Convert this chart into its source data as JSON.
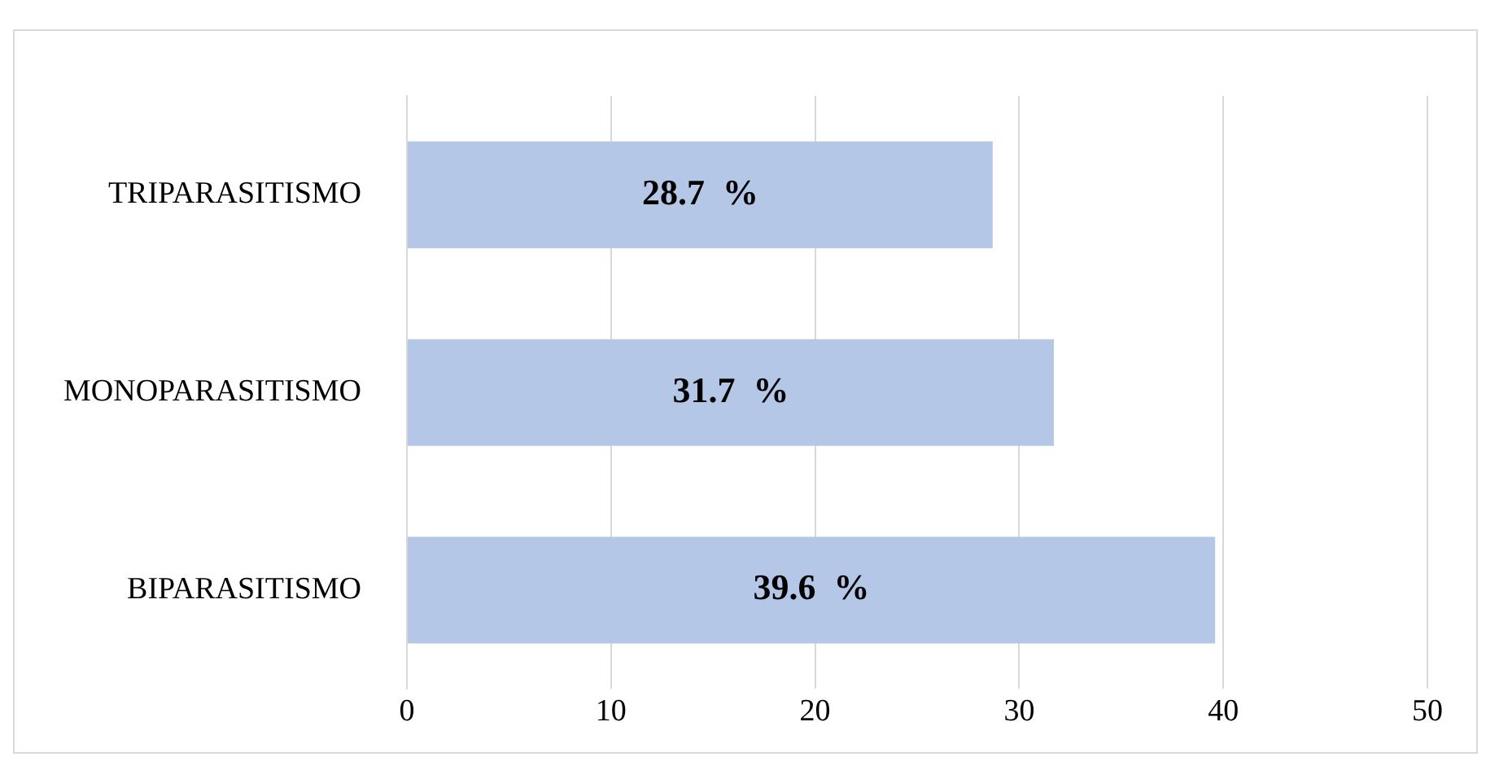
{
  "chart_data": {
    "type": "bar",
    "orientation": "horizontal",
    "categories": [
      "TRIPARASITISMO",
      "MONOPARASITISMO",
      "BIPARASITISMO"
    ],
    "values": [
      28.7,
      31.7,
      39.6
    ],
    "value_labels": [
      "28.7  %",
      "31.7  %",
      "39.6  %"
    ],
    "color": "#b4c7e7",
    "xlim": [
      0,
      50
    ],
    "xticks": [
      0,
      10,
      20,
      30,
      40,
      50
    ],
    "grid": "x"
  }
}
